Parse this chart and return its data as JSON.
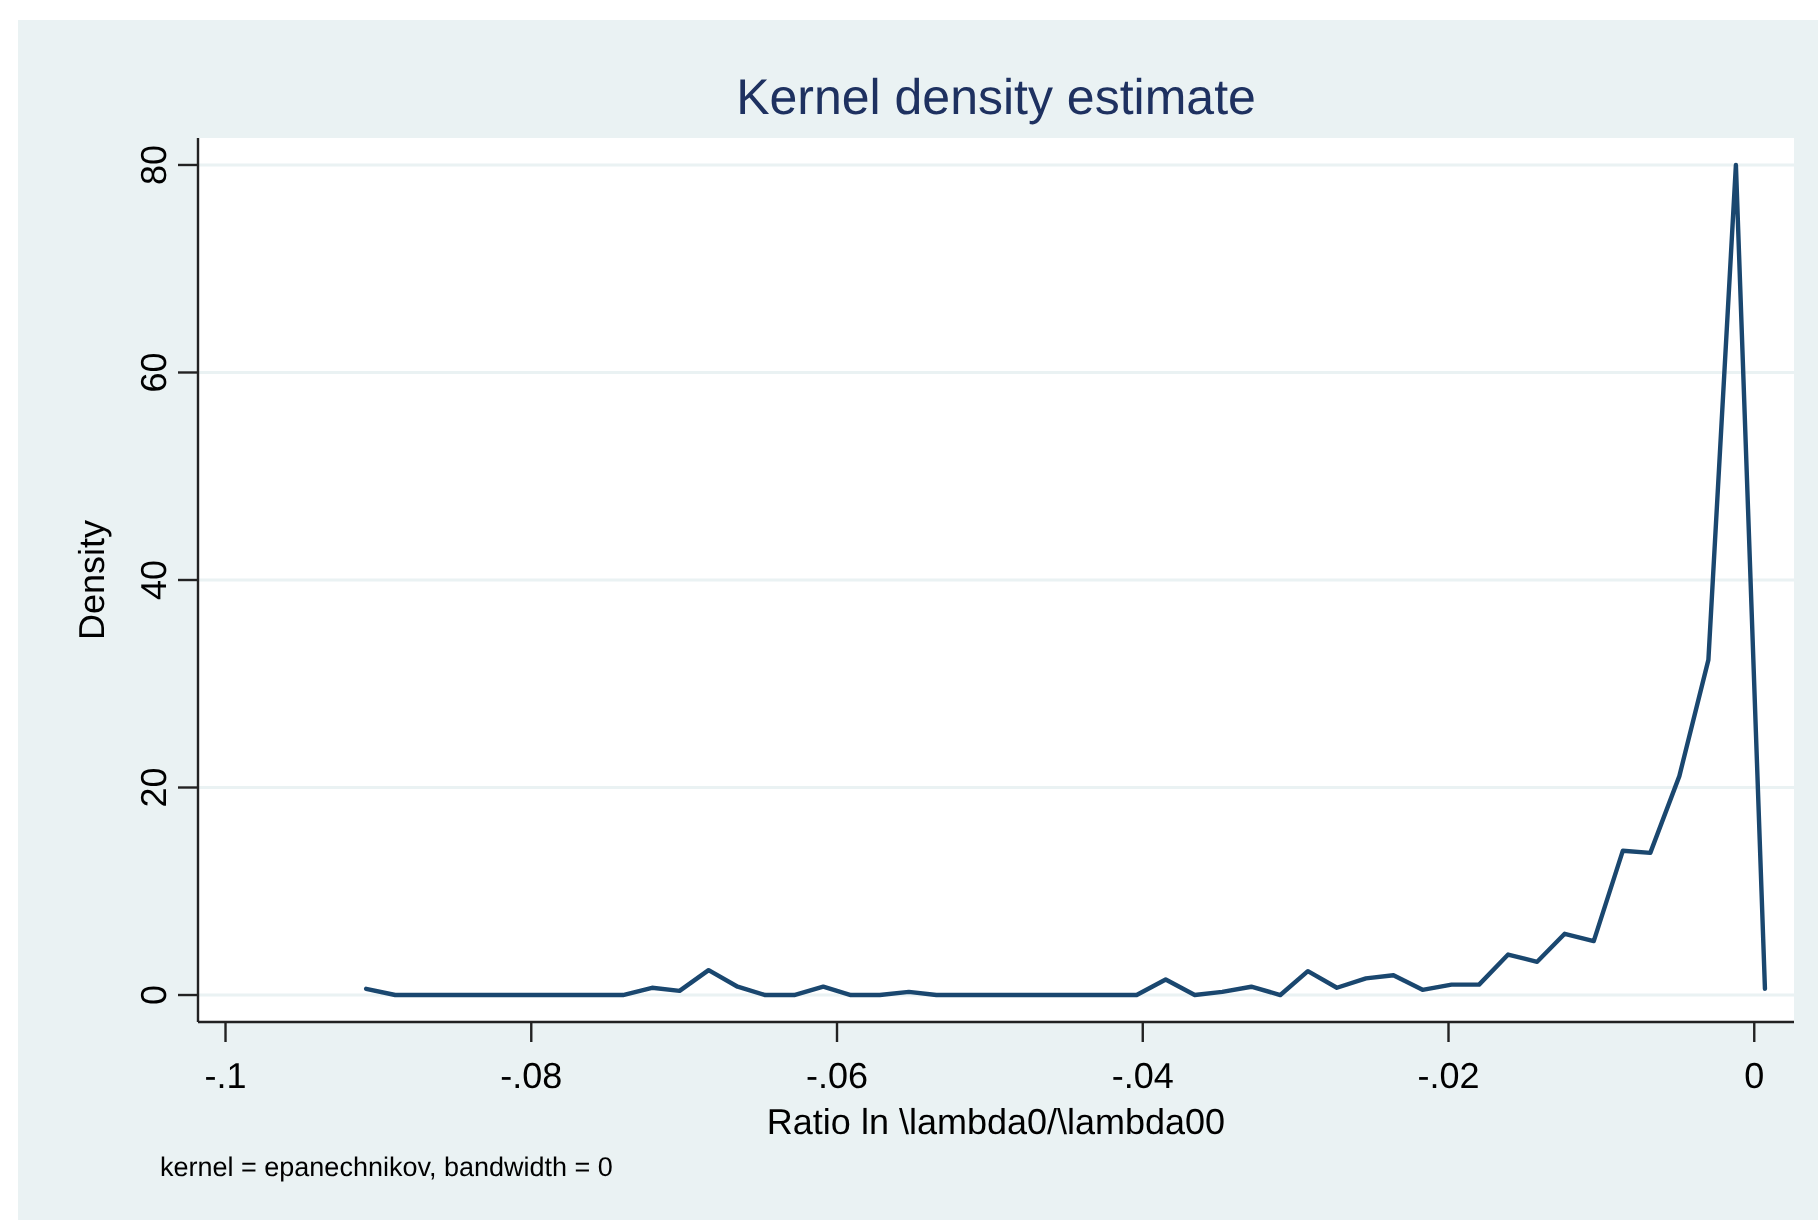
{
  "chart_data": {
    "type": "line",
    "title": "Kernel density estimate",
    "xlabel": "Ratio ln \\lambda0/\\lambda00",
    "ylabel": "Density",
    "annotations": [
      "kernel = epanechnikov, bandwidth = 0"
    ],
    "x": [
      -0.0908,
      -0.0889,
      -0.0871,
      -0.0852,
      -0.0833,
      -0.0815,
      -0.0796,
      -0.0777,
      -0.0759,
      -0.074,
      -0.0721,
      -0.0703,
      -0.0684,
      -0.0665,
      -0.0647,
      -0.0628,
      -0.0609,
      -0.0591,
      -0.0572,
      -0.0553,
      -0.0535,
      -0.0516,
      -0.0497,
      -0.0479,
      -0.046,
      -0.0441,
      -0.0423,
      -0.0404,
      -0.0385,
      -0.0366,
      -0.0348,
      -0.0329,
      -0.031,
      -0.0292,
      -0.0273,
      -0.0254,
      -0.0236,
      -0.0217,
      -0.0198,
      -0.018,
      -0.0161,
      -0.0142,
      -0.0124,
      -0.0105,
      -0.0086,
      -0.0068,
      -0.0049,
      -0.003,
      -0.0012,
      0.0007
    ],
    "series": [
      {
        "color": "#1a476f",
        "values": [
          0.6,
          0,
          0,
          0,
          0,
          0,
          0,
          0,
          0,
          0,
          0.7,
          0.4,
          2.4,
          0.8,
          0,
          0,
          0.8,
          0,
          0,
          0.3,
          0,
          0,
          0,
          0,
          0,
          0,
          0,
          0,
          1.5,
          0,
          0.3,
          0.8,
          0,
          2.3,
          0.7,
          1.6,
          1.9,
          0.5,
          1.0,
          1.0,
          3.9,
          3.2,
          5.9,
          5.2,
          13.9,
          13.7,
          21.1,
          32.3,
          80,
          0.6
        ]
      }
    ],
    "xlim": [
      -0.1018,
      0.0026
    ],
    "ylim": [
      -2.6,
      82.6
    ],
    "xticks": [
      {
        "value": -0.1,
        "label": "-.1"
      },
      {
        "value": -0.08,
        "label": "-.08"
      },
      {
        "value": -0.06,
        "label": "-.06"
      },
      {
        "value": -0.04,
        "label": "-.04"
      },
      {
        "value": -0.02,
        "label": "-.02"
      },
      0
    ],
    "yticks": [
      0,
      20,
      40,
      60,
      80
    ],
    "grid": "y"
  }
}
